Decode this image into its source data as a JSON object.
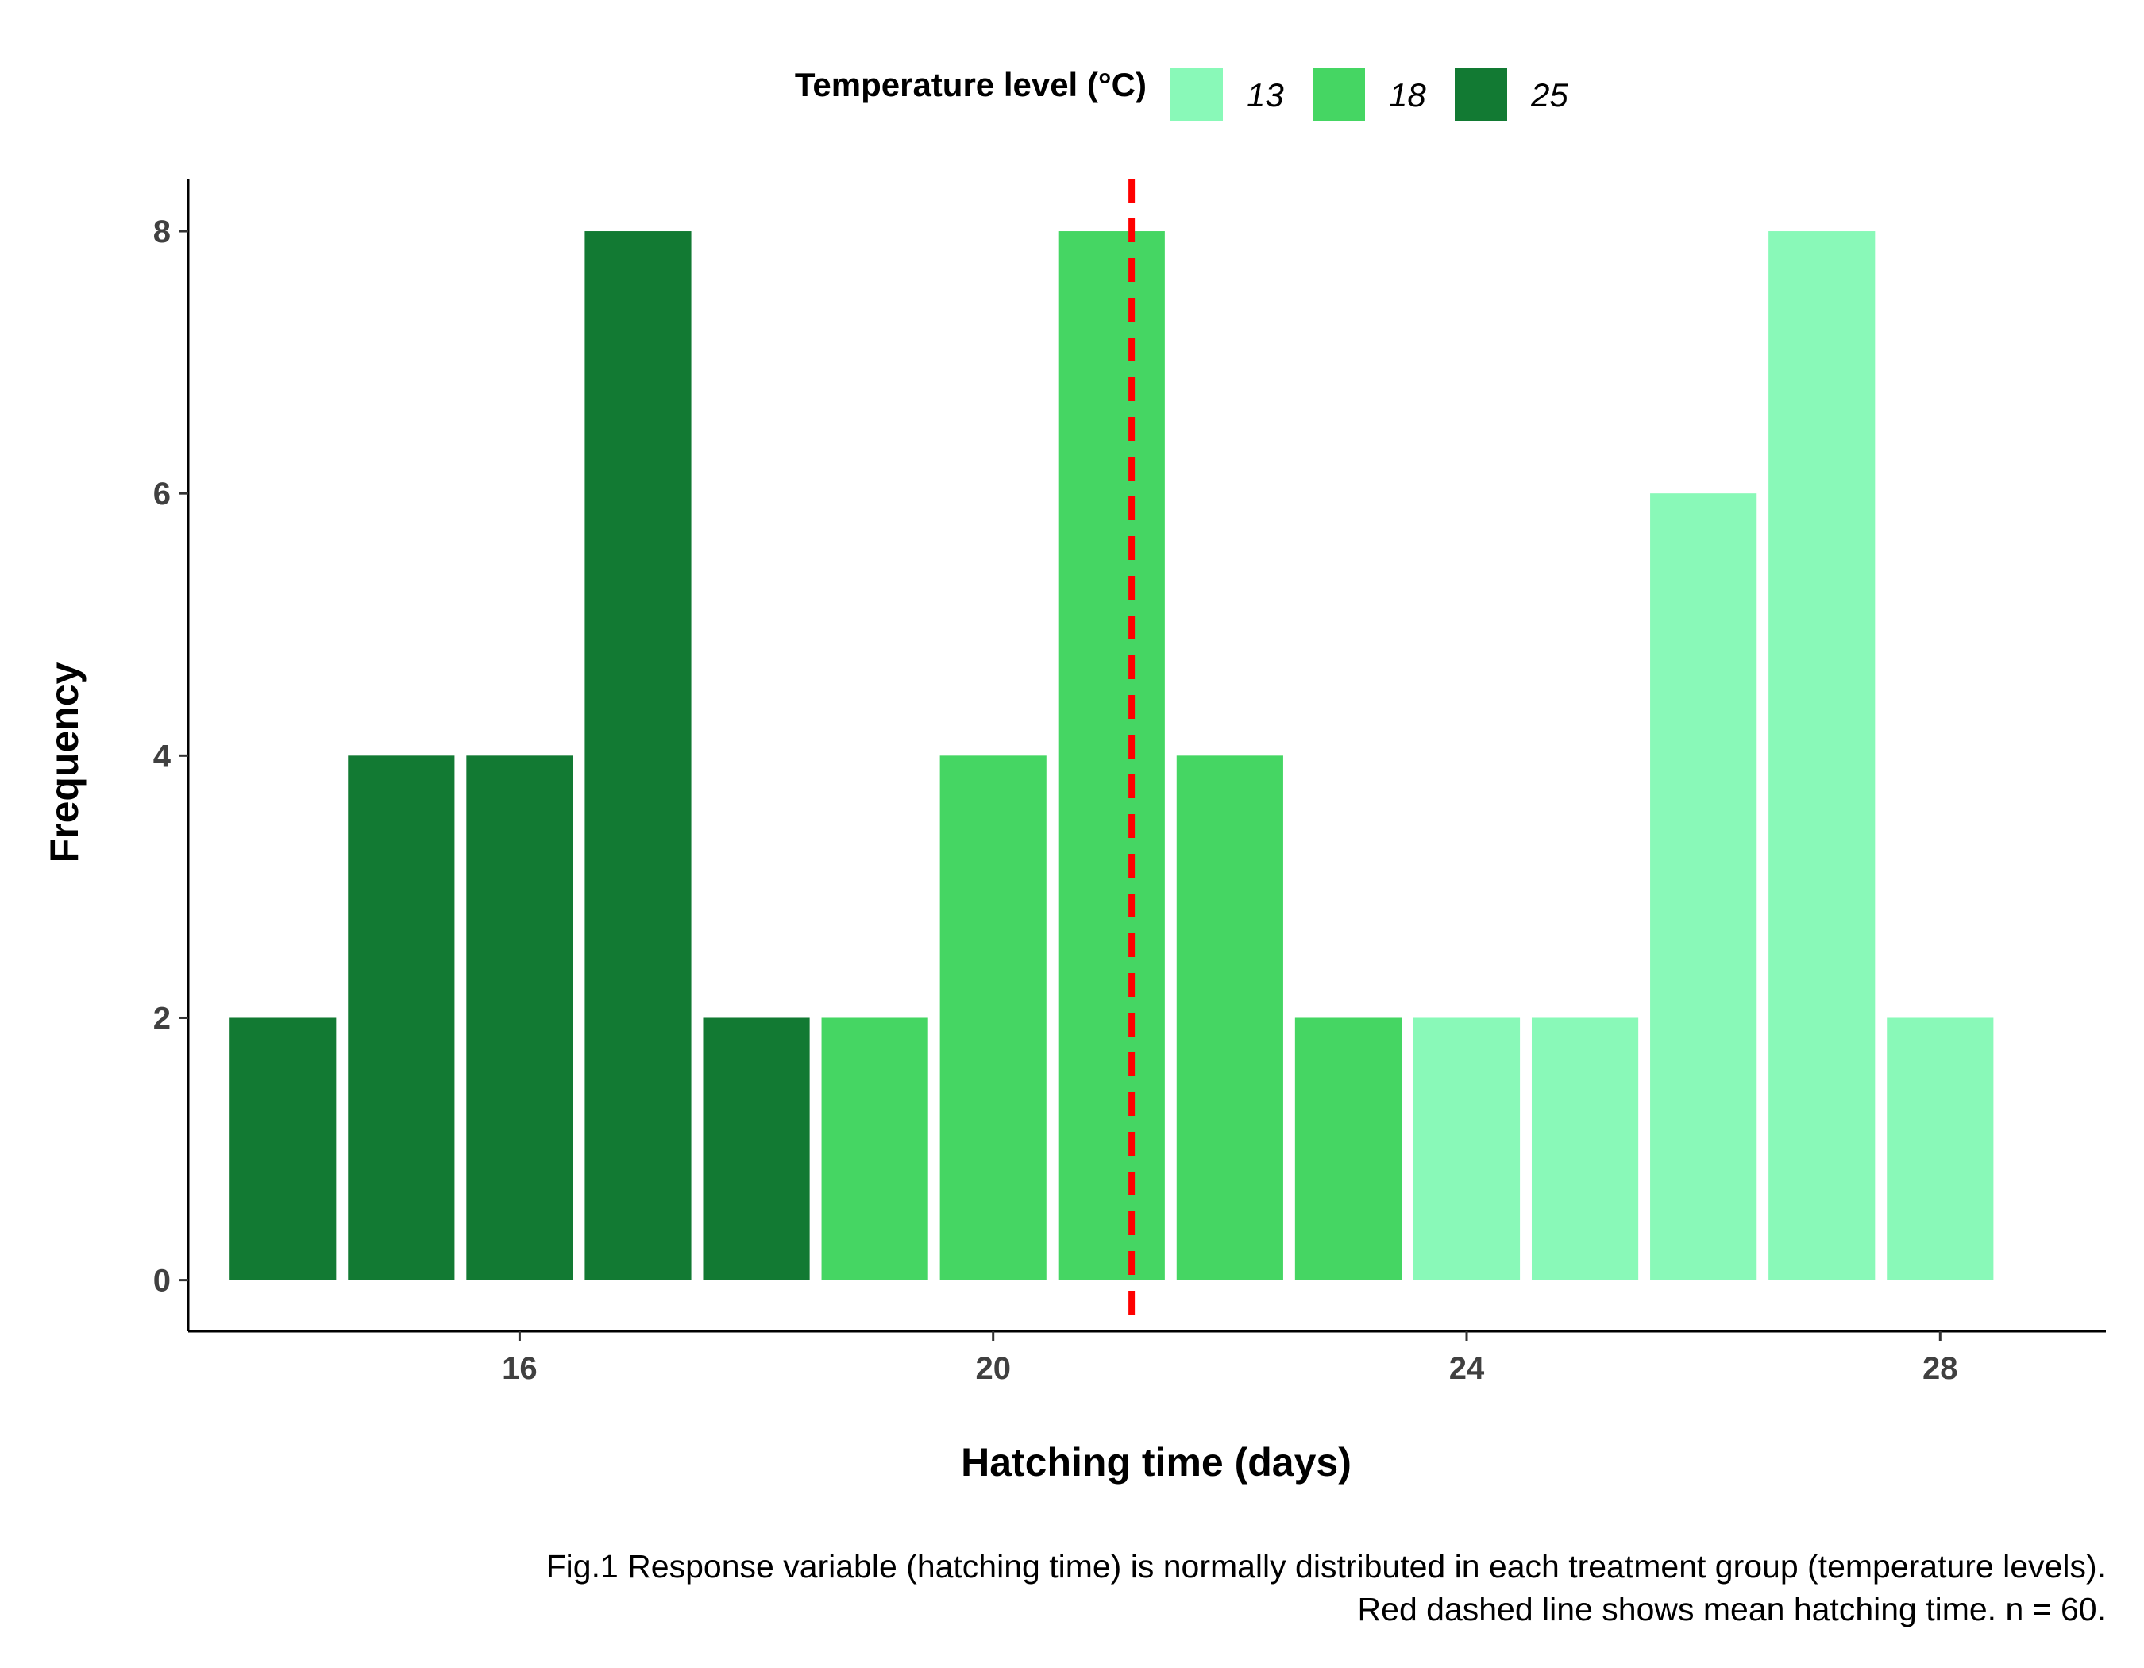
{
  "chart_data": {
    "type": "bar",
    "xlabel": "Hatching time (days)",
    "ylabel": "Frequency",
    "xlim": [
      13.2,
      29.4
    ],
    "ylim": [
      -0.39,
      8.4
    ],
    "x_ticks": [
      16,
      20,
      24,
      28
    ],
    "y_ticks": [
      0,
      2,
      4,
      6,
      8
    ],
    "legend": {
      "title": "Temperature level (°C)",
      "position": "top",
      "entries": [
        {
          "label": "13",
          "color": "#89F9B8"
        },
        {
          "label": "18",
          "color": "#45D663"
        },
        {
          "label": "25",
          "color": "#127A33"
        }
      ]
    },
    "series": [
      {
        "name": "13",
        "color": "#89F9B8",
        "x": [
          24,
          25,
          26,
          27,
          28
        ],
        "values": [
          2,
          2,
          6,
          8,
          2
        ]
      },
      {
        "name": "18",
        "color": "#45D663",
        "x": [
          19,
          20,
          21,
          22,
          23
        ],
        "values": [
          2,
          4,
          8,
          4,
          2
        ]
      },
      {
        "name": "25",
        "color": "#127A33",
        "x": [
          14,
          15,
          16,
          17,
          18
        ],
        "values": [
          2,
          4,
          4,
          8,
          2
        ]
      }
    ],
    "mean_line": {
      "x": 21.17,
      "color": "#FF0000",
      "style": "dashed"
    },
    "grid": false
  },
  "caption": {
    "line1": "Fig.1 Response variable (hatching time) is normally distributed in each treatment group (temperature levels).",
    "line2": "Red dashed line shows mean hatching time. n = 60."
  }
}
